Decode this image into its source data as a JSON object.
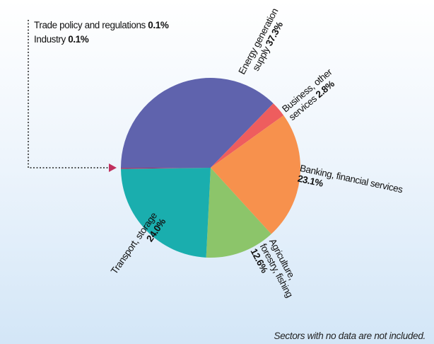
{
  "chart_data": {
    "type": "pie",
    "categories": [
      "Energy generation supply",
      "Business, other services",
      "Banking, financial services",
      "Agriculture, forestry, fishing",
      "Transport, storage",
      "Trade policy and regulations",
      "Industry"
    ],
    "values": [
      37.3,
      2.8,
      23.1,
      12.6,
      24.0,
      0.1,
      0.1
    ],
    "value_labels": [
      "37.3%",
      "2.8%",
      "23.1%",
      "12.6%",
      "24.0%",
      "0.1%",
      "0.1%"
    ],
    "colors": [
      "#5f63ad",
      "#ee5d5e",
      "#f7914d",
      "#8cc56a",
      "#1aaeae",
      "#c0305e",
      "#8e2a6e"
    ],
    "note": "Sectors with no data are not included."
  }
}
